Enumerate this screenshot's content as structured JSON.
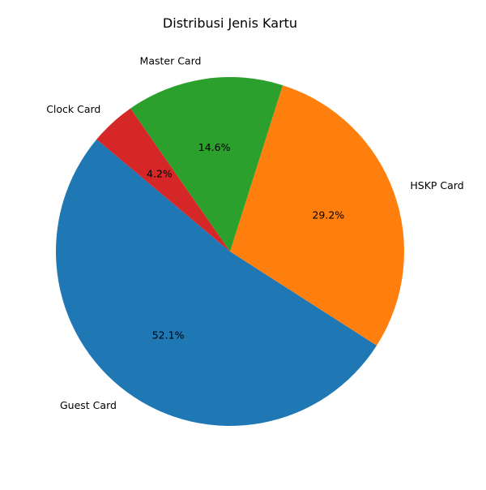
{
  "chart_data": {
    "type": "pie",
    "title": "Distribusi Jenis Kartu",
    "slices": [
      {
        "label": "Guest Card",
        "pct_label": "52.1%",
        "value": 52.1,
        "color": "#1f77b4"
      },
      {
        "label": "HSKP Card",
        "pct_label": "29.2%",
        "value": 29.2,
        "color": "#ff7f0e"
      },
      {
        "label": "Master Card",
        "pct_label": "14.6%",
        "value": 14.6,
        "color": "#2ca02c"
      },
      {
        "label": "Clock Card",
        "pct_label": "4.2%",
        "value": 4.2,
        "color": "#d62728"
      }
    ]
  }
}
